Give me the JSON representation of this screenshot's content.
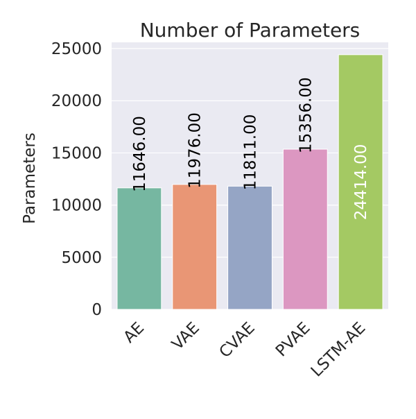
{
  "chart_data": {
    "type": "bar",
    "title": "Number of Parameters",
    "xlabel": "",
    "ylabel": "Parameters",
    "categories": [
      "AE",
      "VAE",
      "CVAE",
      "PVAE",
      "LSTM-AE"
    ],
    "values": [
      11646.0,
      11976.0,
      11811.0,
      15356.0,
      24414.0
    ],
    "value_labels": [
      "11646.00",
      "11976.00",
      "11811.00",
      "15356.00",
      "24414.00"
    ],
    "colors": [
      "#76b7a1",
      "#e99675",
      "#95a5c5",
      "#dc97c1",
      "#a4c963"
    ],
    "ylim": [
      0,
      25600
    ],
    "yticks": [
      0,
      5000,
      10000,
      15000,
      20000,
      25000
    ],
    "ytick_labels": [
      "0",
      "5000",
      "10000",
      "15000",
      "20000",
      "25000"
    ],
    "grid": true,
    "background": "#eaeaf2"
  }
}
